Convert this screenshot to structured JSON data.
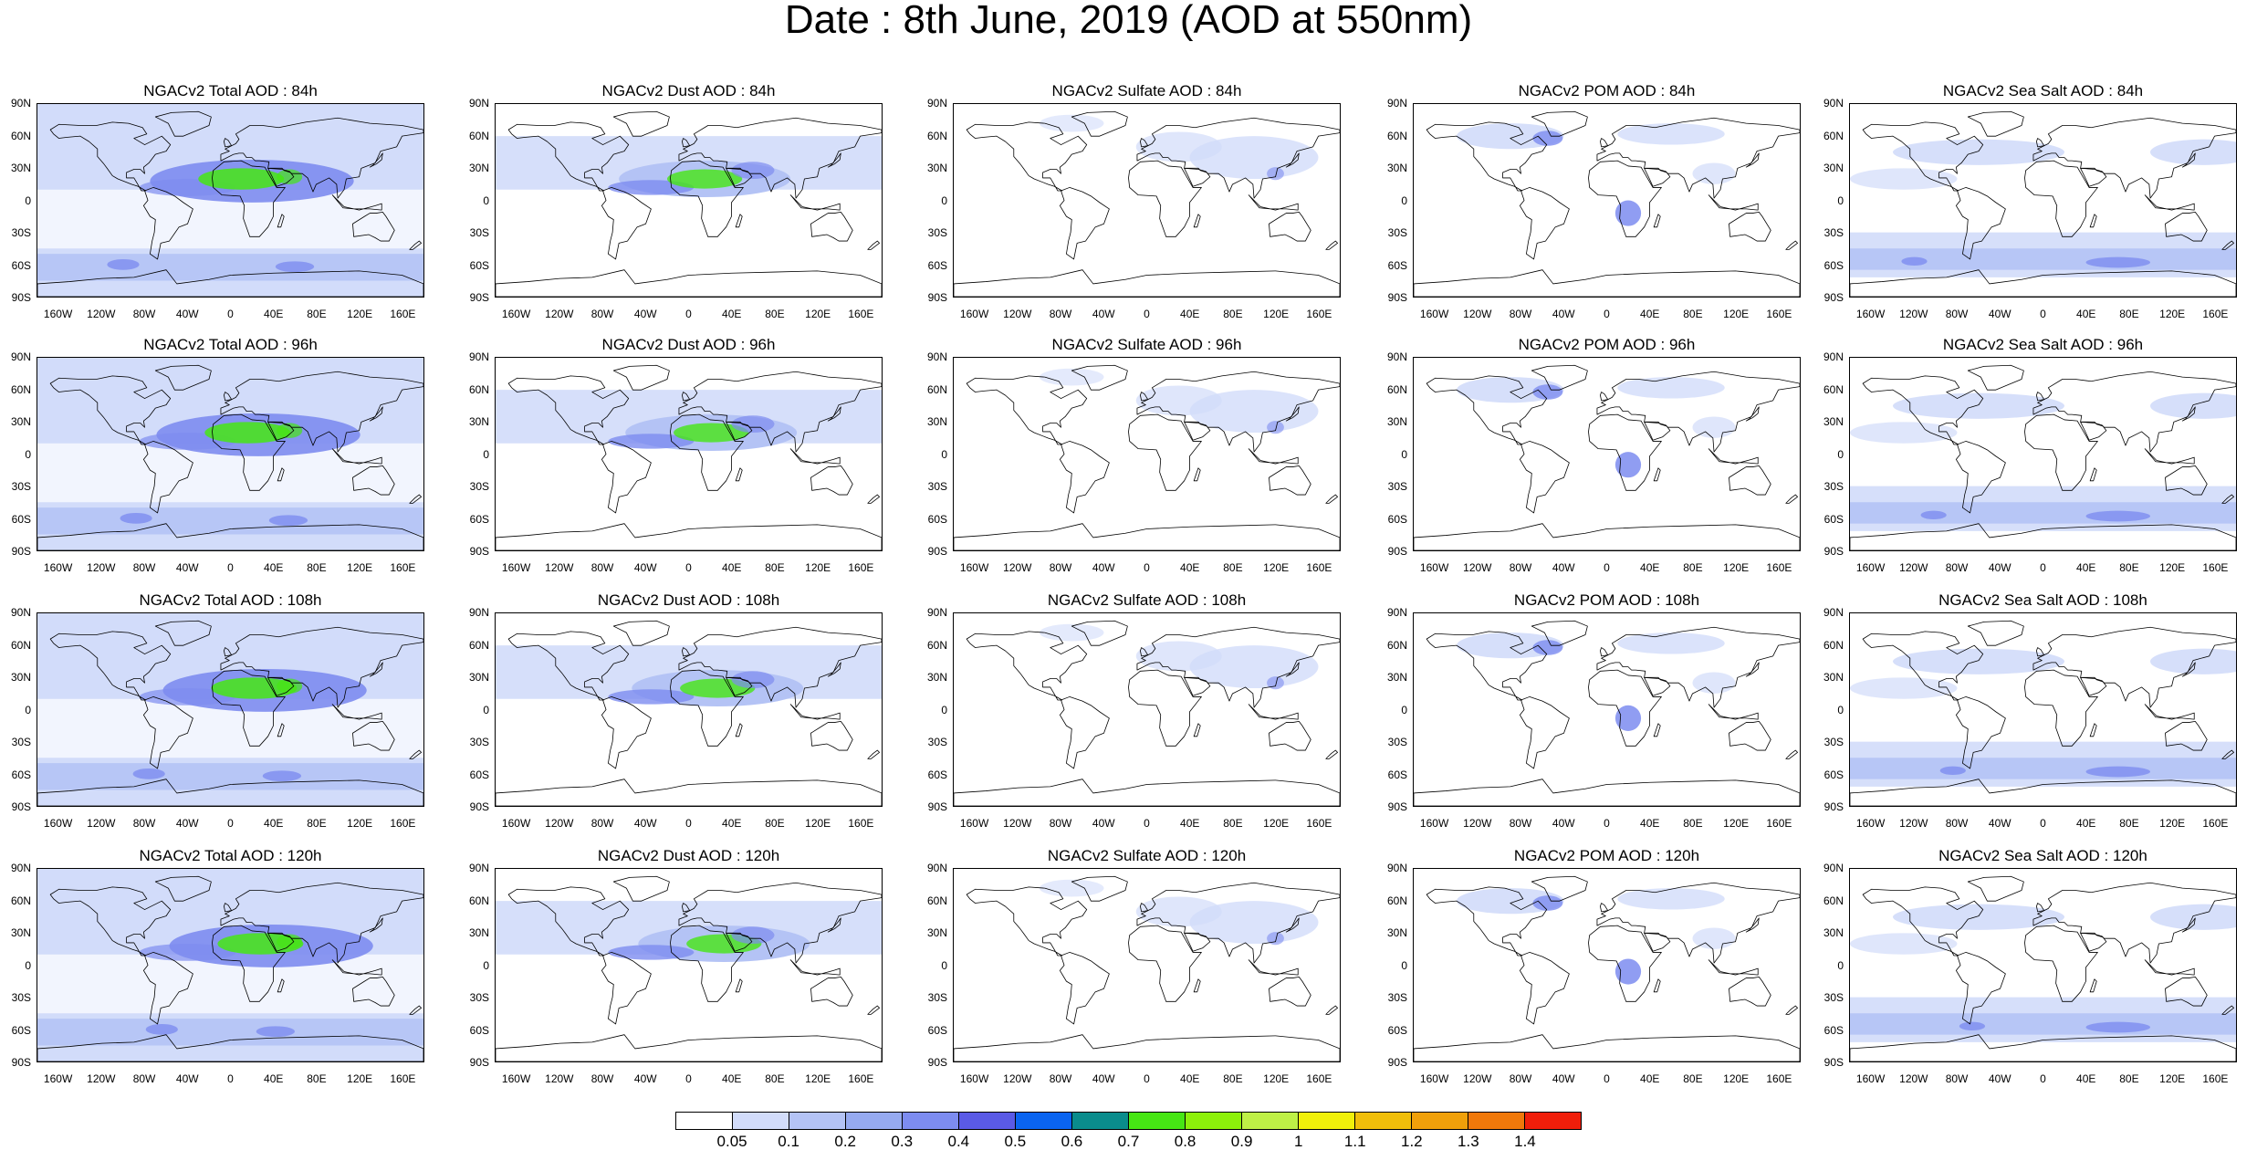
{
  "title": "Date : 8th June, 2019 (AOD at 550nm)",
  "lat_ticks": [
    "90N",
    "60N",
    "30N",
    "0",
    "30S",
    "60S",
    "90S"
  ],
  "lon_ticks": [
    "160W",
    "120W",
    "80W",
    "40W",
    "0",
    "40E",
    "80E",
    "120E",
    "160E"
  ],
  "panels": [
    {
      "title": "NGACv2 Total AOD : 84h",
      "species": "total",
      "forecast_hour": 84
    },
    {
      "title": "NGACv2 Dust AOD : 84h",
      "species": "dust",
      "forecast_hour": 84
    },
    {
      "title": "NGACv2 Sulfate AOD : 84h",
      "species": "sulfate",
      "forecast_hour": 84
    },
    {
      "title": "NGACv2 POM AOD : 84h",
      "species": "pom",
      "forecast_hour": 84
    },
    {
      "title": "NGACv2 Sea Salt AOD : 84h",
      "species": "seasalt",
      "forecast_hour": 84
    },
    {
      "title": "NGACv2 Total AOD : 96h",
      "species": "total",
      "forecast_hour": 96
    },
    {
      "title": "NGACv2 Dust AOD : 96h",
      "species": "dust",
      "forecast_hour": 96
    },
    {
      "title": "NGACv2 Sulfate AOD : 96h",
      "species": "sulfate",
      "forecast_hour": 96
    },
    {
      "title": "NGACv2 POM AOD : 96h",
      "species": "pom",
      "forecast_hour": 96
    },
    {
      "title": "NGACv2 Sea Salt AOD : 96h",
      "species": "seasalt",
      "forecast_hour": 96
    },
    {
      "title": "NGACv2 Total AOD : 108h",
      "species": "total",
      "forecast_hour": 108
    },
    {
      "title": "NGACv2 Dust AOD : 108h",
      "species": "dust",
      "forecast_hour": 108
    },
    {
      "title": "NGACv2 Sulfate AOD : 108h",
      "species": "sulfate",
      "forecast_hour": 108
    },
    {
      "title": "NGACv2 POM AOD : 108h",
      "species": "pom",
      "forecast_hour": 108
    },
    {
      "title": "NGACv2 Sea Salt AOD : 108h",
      "species": "seasalt",
      "forecast_hour": 108
    },
    {
      "title": "NGACv2 Total AOD : 120h",
      "species": "total",
      "forecast_hour": 120
    },
    {
      "title": "NGACv2 Dust AOD : 120h",
      "species": "dust",
      "forecast_hour": 120
    },
    {
      "title": "NGACv2 Sulfate AOD : 120h",
      "species": "sulfate",
      "forecast_hour": 120
    },
    {
      "title": "NGACv2 POM AOD : 120h",
      "species": "pom",
      "forecast_hour": 120
    },
    {
      "title": "NGACv2 Sea Salt  AOD : 120h",
      "species": "seasalt",
      "forecast_hour": 120
    }
  ],
  "colorbar": {
    "labels": [
      "0.05",
      "0.1",
      "0.2",
      "0.3",
      "0.4",
      "0.5",
      "0.6",
      "0.7",
      "0.8",
      "0.9",
      "1",
      "1.1",
      "1.2",
      "1.3",
      "1.4"
    ],
    "colors": [
      "#ffffff",
      "#d2dcfa",
      "#b4c3f5",
      "#96aaf0",
      "#7d8cf0",
      "#5a5ae6",
      "#0a64f0",
      "#0a8c8c",
      "#46e614",
      "#8cf00a",
      "#bef046",
      "#f0f00a",
      "#f0be0a",
      "#f0a00a",
      "#f0780a",
      "#f01e0a"
    ]
  },
  "map_colors": {
    "land_outline": "#000000",
    "low": "#d2dcfa",
    "mid": "#b4c3f5",
    "high": "#7d8cf0",
    "very_high": "#5a5ae6",
    "peak": "#46e614"
  }
}
